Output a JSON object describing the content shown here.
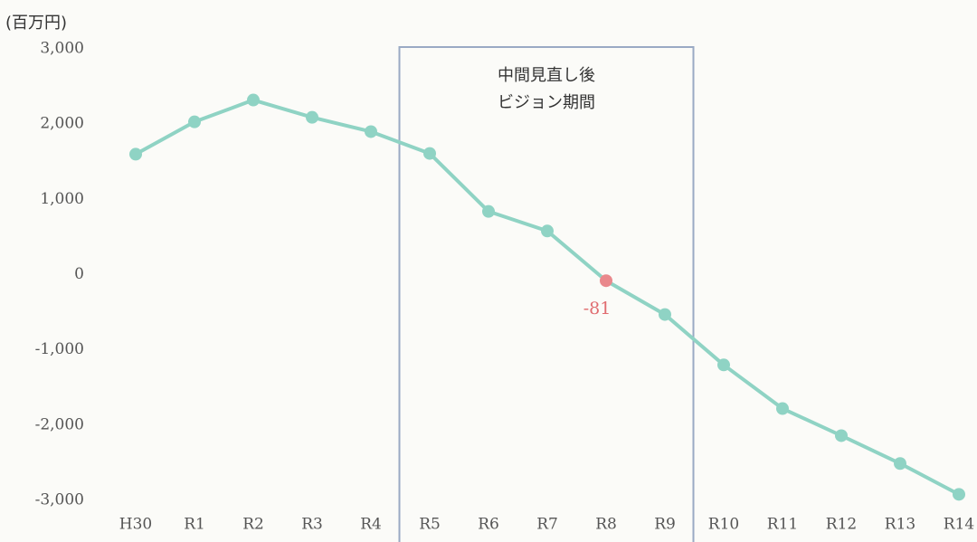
{
  "chart_data": {
    "type": "line",
    "y_unit_label": "(百万円)",
    "categories": [
      "H30",
      "R1",
      "R2",
      "R3",
      "R4",
      "R5",
      "R6",
      "R7",
      "R8",
      "R9",
      "R10",
      "R11",
      "R12",
      "R13",
      "R14"
    ],
    "series": [
      {
        "color": "#8fd3c4",
        "values": [
          1600,
          2030,
          2320,
          2090,
          1900,
          1610,
          840,
          580,
          -81,
          -530,
          -1200,
          -1780,
          -2140,
          -2510,
          -2920
        ],
        "marker_colors": [
          "#8fd3c4",
          "#8fd3c4",
          "#8fd3c4",
          "#8fd3c4",
          "#8fd3c4",
          "#8fd3c4",
          "#8fd3c4",
          "#8fd3c4",
          "#e9888c",
          "#8fd3c4",
          "#8fd3c4",
          "#8fd3c4",
          "#8fd3c4",
          "#8fd3c4",
          "#8fd3c4"
        ],
        "value_labels": [
          null,
          null,
          null,
          null,
          null,
          null,
          null,
          null,
          "-81",
          null,
          null,
          null,
          null,
          null,
          null
        ]
      }
    ],
    "value_label_color": "#e06c70",
    "highlight": {
      "from": "R5",
      "to": "R9",
      "label_lines": [
        "中間見直し後",
        "ビジョン期間"
      ],
      "color": "#9aaac4"
    },
    "ylim": [
      -3000,
      3000
    ],
    "yticks": [
      {
        "value": 3000,
        "label": "3,000"
      },
      {
        "value": 2000,
        "label": "2,000"
      },
      {
        "value": 1000,
        "label": "1,000"
      },
      0,
      {
        "value": -1000,
        "label": "-1,000"
      },
      {
        "value": -2000,
        "label": "-2,000"
      },
      {
        "value": -3000,
        "label": "-3,000"
      }
    ],
    "grid": false
  }
}
